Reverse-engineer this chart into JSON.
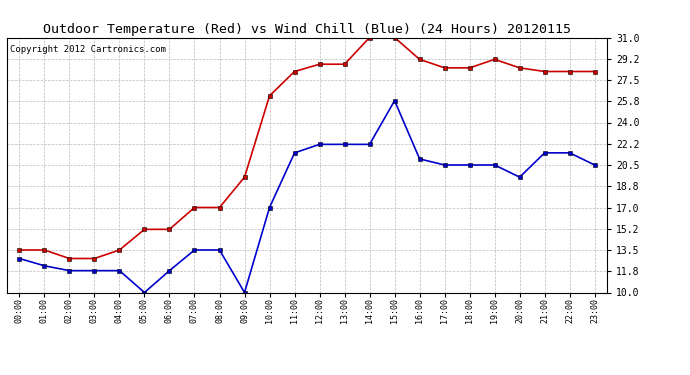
{
  "title": "Outdoor Temperature (Red) vs Wind Chill (Blue) (24 Hours) 20120115",
  "copyright_text": "Copyright 2012 Cartronics.com",
  "hours": [
    0,
    1,
    2,
    3,
    4,
    5,
    6,
    7,
    8,
    9,
    10,
    11,
    12,
    13,
    14,
    15,
    16,
    17,
    18,
    19,
    20,
    21,
    22,
    23
  ],
  "x_labels": [
    "00:00",
    "01:00",
    "02:00",
    "03:00",
    "04:00",
    "05:00",
    "06:00",
    "07:00",
    "08:00",
    "09:00",
    "10:00",
    "11:00",
    "12:00",
    "13:00",
    "14:00",
    "15:00",
    "16:00",
    "17:00",
    "18:00",
    "19:00",
    "20:00",
    "21:00",
    "22:00",
    "23:00"
  ],
  "temp_red": [
    13.5,
    13.5,
    12.8,
    12.8,
    13.5,
    15.2,
    15.2,
    17.0,
    17.0,
    19.5,
    26.2,
    28.2,
    28.8,
    28.8,
    31.0,
    31.0,
    29.2,
    28.5,
    28.5,
    29.2,
    28.5,
    28.2,
    28.2,
    28.2
  ],
  "wind_chill_blue": [
    12.8,
    12.2,
    11.8,
    11.8,
    11.8,
    10.0,
    11.8,
    13.5,
    13.5,
    10.0,
    17.0,
    21.5,
    22.2,
    22.2,
    22.2,
    25.8,
    21.0,
    20.5,
    20.5,
    20.5,
    19.5,
    21.5,
    21.5,
    20.5
  ],
  "ylim": [
    10.0,
    31.0
  ],
  "yticks": [
    10.0,
    11.8,
    13.5,
    15.2,
    17.0,
    18.8,
    20.5,
    22.2,
    24.0,
    25.8,
    27.5,
    29.2,
    31.0
  ],
  "red_color": "#cc0000",
  "blue_color": "#0000cc",
  "bg_color": "#ffffff",
  "plot_bg_color": "#ffffff",
  "grid_color": "#bbbbbb",
  "title_fontsize": 9.5,
  "copyright_fontsize": 6.5
}
